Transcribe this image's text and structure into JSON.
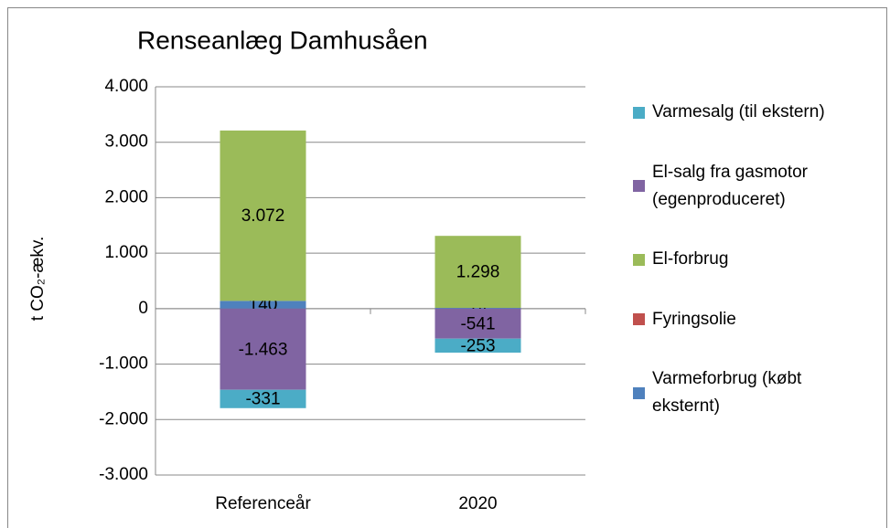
{
  "chart_data": {
    "type": "stacked-bar",
    "title": "Renseanlæg Damhusåen",
    "y_label": "t CO₂-ækv.",
    "categories": [
      "Referenceår",
      "2020"
    ],
    "series": [
      {
        "name": "Varmesalg (til ekstern)",
        "color": "#4bacc6",
        "values": [
          -331,
          -253
        ],
        "value_labels": [
          "-331",
          "-253"
        ]
      },
      {
        "name": "El-salg fra gasmotor (egenproduceret)",
        "color": "#8064a2",
        "values": [
          -1463,
          -541
        ],
        "value_labels": [
          "-1.463",
          "-541"
        ]
      },
      {
        "name": "El-forbrug",
        "color": "#9bbb59",
        "values": [
          3072,
          1298
        ],
        "value_labels": [
          "3.072",
          "1.298"
        ]
      },
      {
        "name": "Fyringsolie",
        "color": "#c0504d",
        "values": [
          0,
          0
        ]
      },
      {
        "name": "Varmeforbrug (købt eksternt)",
        "color": "#4f81bd",
        "values": [
          140,
          14
        ],
        "value_labels": [
          "140",
          "14"
        ]
      }
    ],
    "ylim": [
      -3000,
      4000
    ],
    "yticks": [
      {
        "value": -3000,
        "label": "-3.000"
      },
      {
        "value": -2000,
        "label": "-2.000"
      },
      {
        "value": -1000,
        "label": "-1.000"
      },
      0,
      {
        "value": 1000,
        "label": "1.000"
      },
      {
        "value": 2000,
        "label": "2.000"
      },
      {
        "value": 3000,
        "label": "3.000"
      },
      {
        "value": 4000,
        "label": "4.000"
      }
    ],
    "grid": true,
    "legend": "right"
  }
}
